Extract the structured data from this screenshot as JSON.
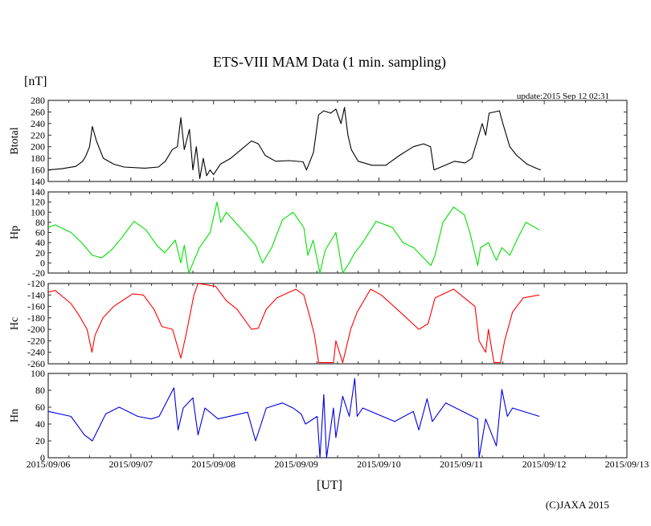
{
  "chart_data": {
    "type": "line",
    "title": "ETS-VIII MAM Data (1 min. sampling)",
    "unit_label": "[nT]",
    "update_text": "update:2015 Sep 12 02:31",
    "xlabel": "[UT]",
    "copyright": "(C)JAXA 2015",
    "x_units": "hours since 2015/09/06 00:00 UT",
    "xlim": [
      0,
      168
    ],
    "x_ticks": [
      {
        "h": 0,
        "label": "2015/09/06"
      },
      {
        "h": 24,
        "label": "2015/09/07"
      },
      {
        "h": 48,
        "label": "2015/09/08"
      },
      {
        "h": 72,
        "label": "2015/09/09"
      },
      {
        "h": 96,
        "label": "2015/09/10"
      },
      {
        "h": 120,
        "label": "2015/09/11"
      },
      {
        "h": 144,
        "label": "2015/09/12"
      },
      {
        "h": 168,
        "label": "2015/09/13"
      }
    ],
    "panels": [
      {
        "name": "Btotal",
        "ylabel": "Btotal",
        "color": "#000000",
        "ylim": [
          140,
          280
        ],
        "ystep": 20,
        "ytick_labels": [
          "140",
          "160",
          "180",
          "200",
          "220",
          "240",
          "260",
          "280"
        ],
        "points": [
          [
            0,
            160
          ],
          [
            4,
            162
          ],
          [
            8,
            166
          ],
          [
            10,
            175
          ],
          [
            11,
            185
          ],
          [
            12,
            200
          ],
          [
            12.8,
            235
          ],
          [
            14,
            210
          ],
          [
            16,
            180
          ],
          [
            19,
            170
          ],
          [
            22,
            165
          ],
          [
            28,
            163
          ],
          [
            32,
            165
          ],
          [
            34,
            175
          ],
          [
            36,
            195
          ],
          [
            37.5,
            200
          ],
          [
            38.5,
            250
          ],
          [
            39.5,
            195
          ],
          [
            41,
            230
          ],
          [
            42,
            160
          ],
          [
            43,
            200
          ],
          [
            44,
            145
          ],
          [
            45,
            180
          ],
          [
            46,
            150
          ],
          [
            47,
            160
          ],
          [
            48,
            152
          ],
          [
            50,
            170
          ],
          [
            53,
            180
          ],
          [
            56,
            195
          ],
          [
            59,
            210
          ],
          [
            61,
            205
          ],
          [
            63,
            185
          ],
          [
            66,
            175
          ],
          [
            70,
            176
          ],
          [
            74,
            174
          ],
          [
            75,
            160
          ],
          [
            77,
            190
          ],
          [
            78.5,
            255
          ],
          [
            80,
            262
          ],
          [
            82,
            258
          ],
          [
            83.5,
            265
          ],
          [
            85,
            240
          ],
          [
            86,
            268
          ],
          [
            87,
            220
          ],
          [
            88,
            195
          ],
          [
            90,
            175
          ],
          [
            94,
            168
          ],
          [
            98,
            168
          ],
          [
            102,
            185
          ],
          [
            106,
            200
          ],
          [
            109,
            205
          ],
          [
            111,
            200
          ],
          [
            112,
            160
          ],
          [
            114,
            165
          ],
          [
            118,
            175
          ],
          [
            121,
            172
          ],
          [
            123,
            180
          ],
          [
            124.5,
            210
          ],
          [
            126,
            240
          ],
          [
            127,
            220
          ],
          [
            128,
            258
          ],
          [
            131,
            262
          ],
          [
            132,
            240
          ],
          [
            134,
            200
          ],
          [
            136,
            185
          ],
          [
            139,
            170
          ],
          [
            142,
            162
          ],
          [
            143,
            160
          ]
        ]
      },
      {
        "name": "Hp",
        "ylabel": "Hp",
        "color": "#00e000",
        "ylim": [
          -20,
          140
        ],
        "ystep": 20,
        "ytick_labels": [
          "-20",
          "0",
          "20",
          "40",
          "60",
          "80",
          "100",
          "120",
          "140"
        ],
        "points": [
          [
            0,
            70
          ],
          [
            2,
            75
          ],
          [
            6.6,
            60
          ],
          [
            9.7,
            40
          ],
          [
            12.8,
            15
          ],
          [
            15.5,
            10
          ],
          [
            18.3,
            25
          ],
          [
            21.4,
            50
          ],
          [
            24.9,
            82
          ],
          [
            28.4,
            65
          ],
          [
            31.5,
            35
          ],
          [
            33.8,
            20
          ],
          [
            36.9,
            45
          ],
          [
            38.5,
            0
          ],
          [
            39.5,
            35
          ],
          [
            40.8,
            -20
          ],
          [
            43.9,
            30
          ],
          [
            47,
            60
          ],
          [
            49,
            120
          ],
          [
            50.1,
            80
          ],
          [
            51.7,
            100
          ],
          [
            56.3,
            65
          ],
          [
            60.2,
            35
          ],
          [
            62.2,
            0
          ],
          [
            64.9,
            30
          ],
          [
            68,
            85
          ],
          [
            71.1,
            100
          ],
          [
            74.2,
            70
          ],
          [
            75.4,
            15
          ],
          [
            76.9,
            45
          ],
          [
            78.9,
            -20
          ],
          [
            80.4,
            25
          ],
          [
            83.5,
            60
          ],
          [
            85.5,
            -20
          ],
          [
            87.4,
            0
          ],
          [
            89,
            20
          ],
          [
            91.3,
            40
          ],
          [
            95.2,
            82
          ],
          [
            99.9,
            70
          ],
          [
            103,
            40
          ],
          [
            106.1,
            30
          ],
          [
            111.1,
            -5
          ],
          [
            112.3,
            15
          ],
          [
            114.6,
            80
          ],
          [
            117.7,
            110
          ],
          [
            120.8,
            95
          ],
          [
            122.4,
            60
          ],
          [
            124.7,
            -5
          ],
          [
            125.5,
            30
          ],
          [
            127.8,
            40
          ],
          [
            130.1,
            5
          ],
          [
            131.7,
            30
          ],
          [
            134,
            15
          ],
          [
            136.4,
            50
          ],
          [
            138.7,
            80
          ],
          [
            142.6,
            65
          ]
        ]
      },
      {
        "name": "Hc",
        "ylabel": "Hc",
        "color": "#ff0000",
        "ylim": [
          -260,
          -120
        ],
        "ystep": 20,
        "ytick_labels": [
          "-260",
          "-240",
          "-220",
          "-200",
          "-180",
          "-160",
          "-140",
          "-120"
        ],
        "points": [
          [
            0,
            -135
          ],
          [
            2,
            -132
          ],
          [
            6.6,
            -155
          ],
          [
            8.9,
            -175
          ],
          [
            11.3,
            -200
          ],
          [
            12.7,
            -240
          ],
          [
            13.6,
            -210
          ],
          [
            15.9,
            -180
          ],
          [
            19,
            -160
          ],
          [
            24.5,
            -138
          ],
          [
            27.6,
            -140
          ],
          [
            30.7,
            -165
          ],
          [
            33,
            -195
          ],
          [
            36.1,
            -200
          ],
          [
            38.5,
            -250
          ],
          [
            40,
            -210
          ],
          [
            42.3,
            -140
          ],
          [
            43.5,
            -120
          ],
          [
            48.6,
            -125
          ],
          [
            51.7,
            -150
          ],
          [
            54.8,
            -165
          ],
          [
            59,
            -200
          ],
          [
            61,
            -198
          ],
          [
            63.3,
            -165
          ],
          [
            66.4,
            -145
          ],
          [
            71.9,
            -130
          ],
          [
            74.2,
            -140
          ],
          [
            75.8,
            -175
          ],
          [
            77.3,
            -210
          ],
          [
            78.5,
            -258
          ],
          [
            82.8,
            -258
          ],
          [
            83.5,
            -220
          ],
          [
            85.5,
            -258
          ],
          [
            87.8,
            -200
          ],
          [
            89.7,
            -170
          ],
          [
            93.6,
            -130
          ],
          [
            96.7,
            -140
          ],
          [
            102.2,
            -170
          ],
          [
            107.6,
            -200
          ],
          [
            110.3,
            -190
          ],
          [
            112.3,
            -145
          ],
          [
            117.7,
            -130
          ],
          [
            123.9,
            -160
          ],
          [
            125.1,
            -220
          ],
          [
            127,
            -240
          ],
          [
            127.8,
            -200
          ],
          [
            129.4,
            -258
          ],
          [
            131.3,
            -258
          ],
          [
            132.5,
            -220
          ],
          [
            134.8,
            -170
          ],
          [
            137.9,
            -145
          ],
          [
            142.6,
            -140
          ]
        ]
      },
      {
        "name": "Hn",
        "ylabel": "Hn",
        "color": "#0000e0",
        "ylim": [
          0,
          100
        ],
        "ystep": 20,
        "ytick_labels": [
          "0",
          "20",
          "40",
          "60",
          "80",
          "100"
        ],
        "points": [
          [
            0,
            55
          ],
          [
            6.6,
            49
          ],
          [
            10.5,
            27
          ],
          [
            12.8,
            20
          ],
          [
            14.4,
            33
          ],
          [
            16.7,
            52
          ],
          [
            20.6,
            60
          ],
          [
            26,
            49
          ],
          [
            29.9,
            46
          ],
          [
            32.2,
            49
          ],
          [
            36.5,
            83
          ],
          [
            37.7,
            33
          ],
          [
            39.2,
            59
          ],
          [
            42,
            71
          ],
          [
            43.5,
            27
          ],
          [
            45.5,
            59
          ],
          [
            49.3,
            46
          ],
          [
            57.9,
            54
          ],
          [
            60.2,
            20
          ],
          [
            61.8,
            40
          ],
          [
            63.3,
            59
          ],
          [
            68,
            65
          ],
          [
            71.1,
            59
          ],
          [
            73.4,
            52
          ],
          [
            74.7,
            40
          ],
          [
            78.1,
            49
          ],
          [
            78.9,
            0
          ],
          [
            80,
            75
          ],
          [
            80.8,
            0
          ],
          [
            82.8,
            59
          ],
          [
            83.5,
            24
          ],
          [
            85.5,
            73
          ],
          [
            87.4,
            49
          ],
          [
            89,
            94
          ],
          [
            89.7,
            49
          ],
          [
            91.3,
            59
          ],
          [
            100.6,
            43
          ],
          [
            106,
            55
          ],
          [
            107.6,
            33
          ],
          [
            110,
            70
          ],
          [
            111.5,
            43
          ],
          [
            115.4,
            65
          ],
          [
            124.7,
            46
          ],
          [
            125.1,
            0
          ],
          [
            127,
            46
          ],
          [
            130.1,
            14
          ],
          [
            131.7,
            81
          ],
          [
            133.3,
            49
          ],
          [
            134.8,
            59
          ],
          [
            142.6,
            49
          ]
        ]
      }
    ]
  }
}
